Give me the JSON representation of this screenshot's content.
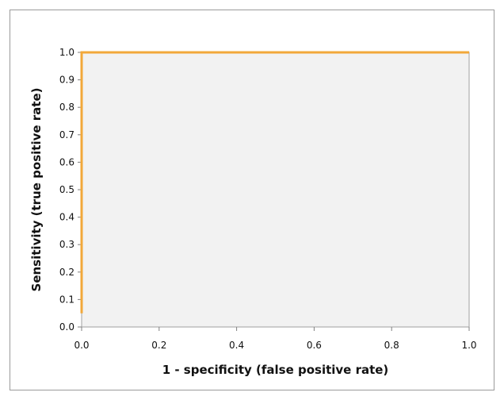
{
  "chart_data": {
    "type": "line",
    "title": "",
    "xlabel": "1 - specificity (false positive rate)",
    "ylabel": "Sensitivity (true positive  rate)",
    "xlim": [
      0.0,
      1.0
    ],
    "ylim": [
      0.0,
      1.0
    ],
    "x_ticks": [
      "0.0",
      "0.2",
      "0.4",
      "0.6",
      "0.8",
      "1.0"
    ],
    "y_ticks": [
      "0.0",
      "0.1",
      "0.2",
      "0.3",
      "0.4",
      "0.5",
      "0.6",
      "0.7",
      "0.8",
      "0.9",
      "1.0"
    ],
    "grid": false,
    "legend": "none",
    "plot_background": "#f2f2f2",
    "series": [
      {
        "color": "#f2a83a",
        "x": [
          0.0,
          0.0,
          1.0
        ],
        "y": [
          0.05,
          1.0,
          1.0
        ]
      }
    ]
  }
}
